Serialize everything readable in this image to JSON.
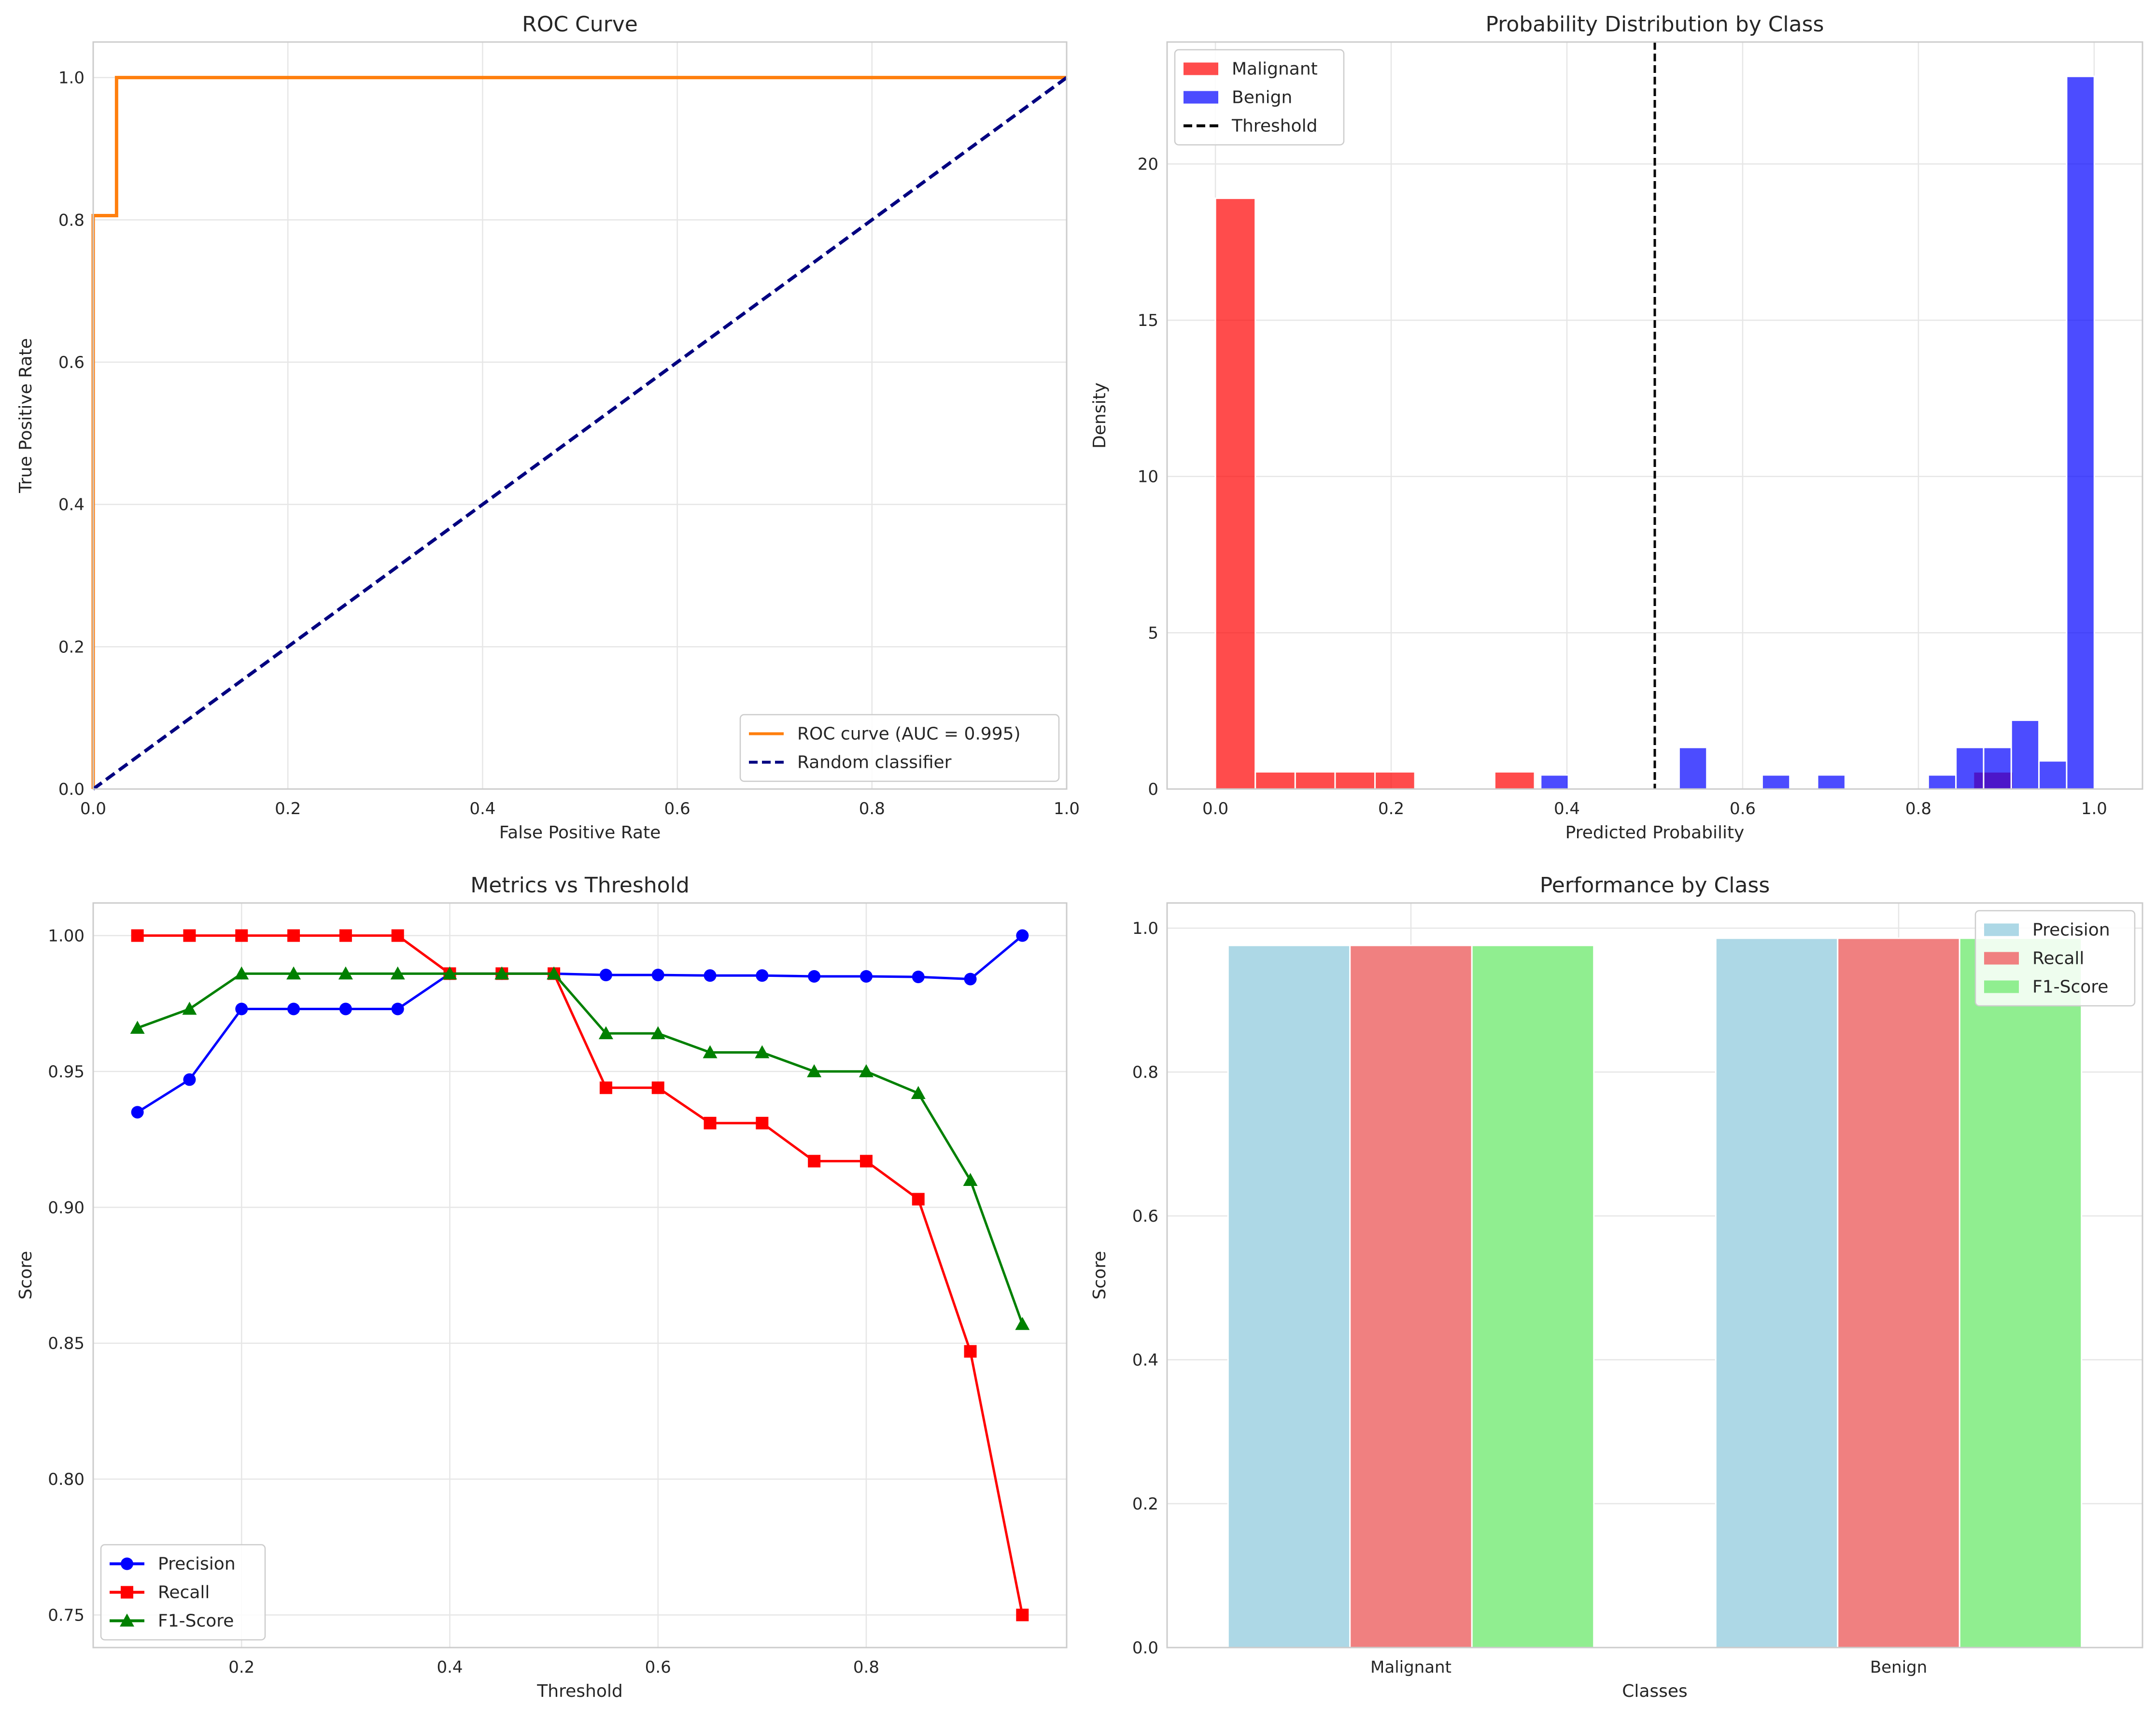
{
  "chart_data": [
    {
      "type": "line",
      "title": "ROC Curve",
      "xlabel": "False Positive Rate",
      "ylabel": "True Positive Rate",
      "xlim": [
        0,
        1
      ],
      "ylim": [
        0,
        1.05
      ],
      "xticks": [
        "0.0",
        "0.2",
        "0.4",
        "0.6",
        "0.8",
        "1.0"
      ],
      "yticks": [
        "0.0",
        "0.2",
        "0.4",
        "0.6",
        "0.8",
        "1.0"
      ],
      "grid": true,
      "legend_position": "lower-right",
      "series": [
        {
          "name": "ROC curve (AUC = 0.995)",
          "color": "#ff7f0e",
          "style": "solid",
          "x": [
            0,
            0,
            0,
            0,
            0.024,
            0.024,
            0.05,
            1.0
          ],
          "y": [
            0,
            0.02,
            0.806,
            0.806,
            0.806,
            1.0,
            1.0,
            1.0
          ]
        },
        {
          "name": "Random classifier",
          "color": "#000080",
          "style": "dashed",
          "x": [
            0,
            1
          ],
          "y": [
            0,
            1
          ]
        }
      ]
    },
    {
      "type": "bar",
      "subtype": "histogram",
      "title": "Probability Distribution by Class",
      "xlabel": "Predicted Probability",
      "ylabel": "Density",
      "xlim": [
        -0.055,
        1.055
      ],
      "ylim": [
        0,
        23.9
      ],
      "xticks": [
        "0.0",
        "0.2",
        "0.4",
        "0.6",
        "0.8",
        "1.0"
      ],
      "yticks": [
        "0",
        "5",
        "10",
        "15",
        "20"
      ],
      "grid": true,
      "legend_position": "top-left",
      "threshold": 0.5,
      "threshold_label": "Threshold",
      "series": [
        {
          "name": "Malignant",
          "color": "#ff0000",
          "bin_width": 0.0454,
          "bin_starts": [
            0.0,
            0.0454,
            0.0908,
            0.1362,
            0.1816,
            0.3178,
            0.8626
          ],
          "values": [
            18.9,
            0.55,
            0.55,
            0.55,
            0.55,
            0.55,
            0.55
          ]
        },
        {
          "name": "Benign",
          "color": "#0000ff",
          "bin_width": 0.0315,
          "bin_starts": [
            0.3702,
            0.5277,
            0.6222,
            0.6852,
            0.8112,
            0.8427,
            0.8742,
            0.9057,
            0.9372,
            0.9687
          ],
          "values": [
            0.45,
            1.33,
            0.45,
            0.45,
            0.45,
            1.33,
            1.33,
            2.2,
            0.9,
            22.8
          ]
        }
      ]
    },
    {
      "type": "line",
      "title": "Metrics vs Threshold",
      "xlabel": "Threshold",
      "ylabel": "Score",
      "xlim": [
        0.0575,
        0.9925
      ],
      "ylim": [
        0.738,
        1.012
      ],
      "xticks": [
        "0.2",
        "0.4",
        "0.6",
        "0.8"
      ],
      "yticks": [
        "0.75",
        "0.80",
        "0.85",
        "0.90",
        "0.95",
        "1.00"
      ],
      "grid": true,
      "legend_position": "lower-left",
      "x": [
        0.1,
        0.15,
        0.2,
        0.25,
        0.3,
        0.35,
        0.4,
        0.45,
        0.5,
        0.55,
        0.6,
        0.65,
        0.7,
        0.75,
        0.8,
        0.85,
        0.9,
        0.95
      ],
      "series": [
        {
          "name": "Precision",
          "color": "#0000ff",
          "marker": "circle",
          "values": [
            0.935,
            0.947,
            0.973,
            0.973,
            0.973,
            0.973,
            0.986,
            0.986,
            0.986,
            0.9855,
            0.9855,
            0.9853,
            0.9853,
            0.985,
            0.985,
            0.9848,
            0.984,
            1.0
          ]
        },
        {
          "name": "Recall",
          "color": "#ff0000",
          "marker": "square",
          "values": [
            1.0,
            1.0,
            1.0,
            1.0,
            1.0,
            1.0,
            0.986,
            0.986,
            0.986,
            0.944,
            0.944,
            0.931,
            0.931,
            0.917,
            0.917,
            0.903,
            0.847,
            0.75
          ]
        },
        {
          "name": "F1-Score",
          "color": "#008000",
          "marker": "triangle",
          "values": [
            0.966,
            0.973,
            0.986,
            0.986,
            0.986,
            0.986,
            0.986,
            0.986,
            0.986,
            0.964,
            0.964,
            0.957,
            0.957,
            0.95,
            0.95,
            0.942,
            0.91,
            0.857
          ]
        }
      ]
    },
    {
      "type": "bar",
      "title": "Performance by Class",
      "xlabel": "Classes",
      "ylabel": "Score",
      "ylim": [
        0,
        1.035
      ],
      "yticks": [
        "0.0",
        "0.2",
        "0.4",
        "0.6",
        "0.8",
        "1.0"
      ],
      "grid": true,
      "legend_position": "top-right",
      "categories": [
        "Malignant",
        "Benign"
      ],
      "series": [
        {
          "name": "Precision",
          "color": "#add8e6",
          "values": [
            0.976,
            0.986
          ]
        },
        {
          "name": "Recall",
          "color": "#f08080",
          "values": [
            0.976,
            0.986
          ]
        },
        {
          "name": "F1-Score",
          "color": "#90ee90",
          "values": [
            0.976,
            0.986
          ]
        }
      ]
    }
  ]
}
